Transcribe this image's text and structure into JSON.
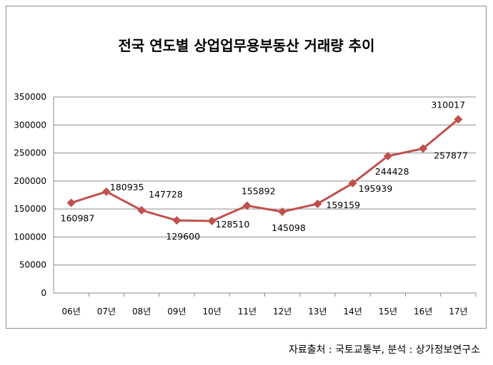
{
  "chart_data": {
    "type": "line",
    "title": "전국 연도별 상업업무용부동산 거래량 추이",
    "categories": [
      "06년",
      "07년",
      "08년",
      "09년",
      "10년",
      "11년",
      "12년",
      "13년",
      "14년",
      "15년",
      "16년",
      "17년"
    ],
    "values": [
      160987,
      180935,
      147728,
      129600,
      128510,
      155892,
      145098,
      159159,
      195939,
      244428,
      257877,
      310017
    ],
    "ylim": [
      0,
      350000
    ],
    "yticks": [
      0,
      50000,
      100000,
      150000,
      200000,
      250000,
      300000,
      350000
    ],
    "grid": true,
    "legend": "none",
    "xlabel": "",
    "ylabel": "",
    "series_color": "#c0504d"
  },
  "footer": "자료출처 : 국토교통부, 분석 : 상가정보연구소"
}
